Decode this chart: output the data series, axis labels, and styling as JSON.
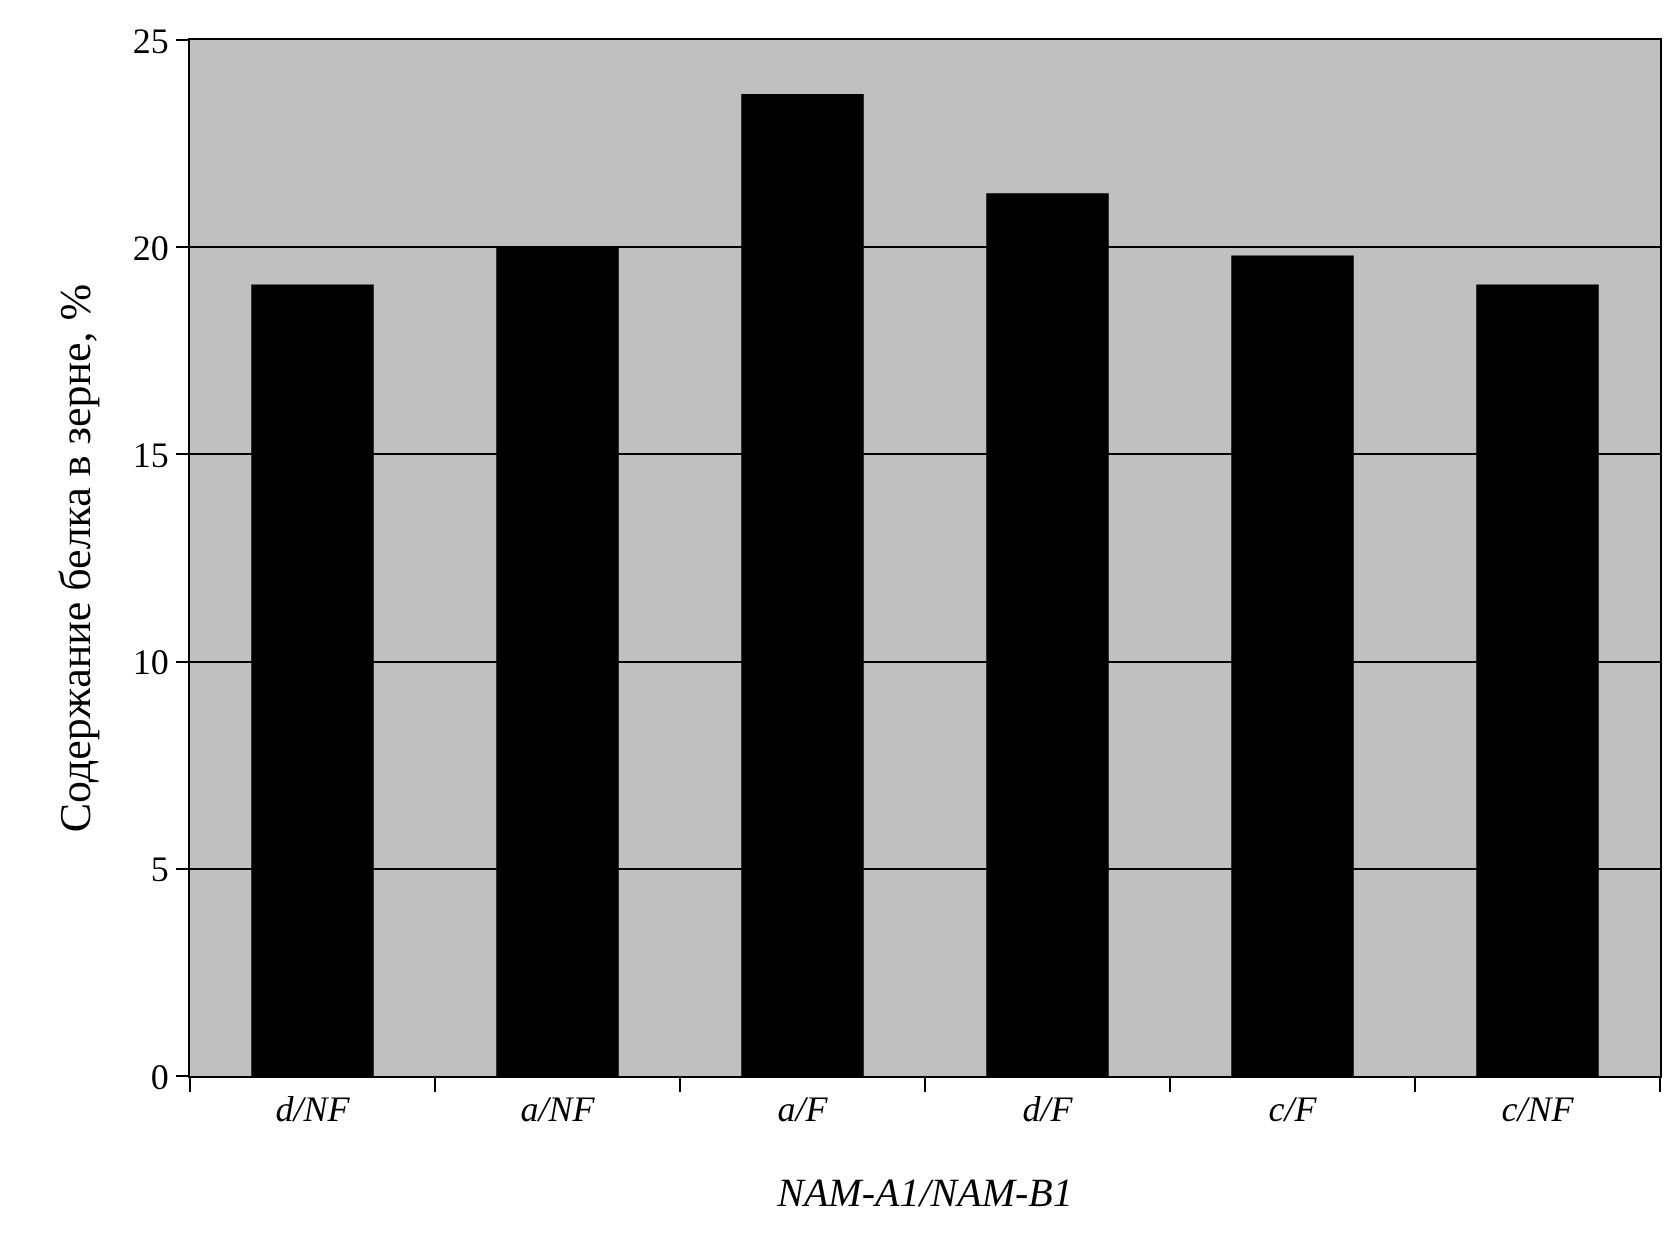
{
  "chart_data": {
    "type": "bar",
    "xlabel": "NAM-A1/NAM-B1",
    "ylabel": "Содержание белка в зерне, %",
    "categories": [
      "d/NF",
      "a/NF",
      "a/F",
      "d/F",
      "c/F",
      "c/NF"
    ],
    "values": [
      19.1,
      20.0,
      23.7,
      21.3,
      19.8,
      19.1
    ],
    "color": "#000000",
    "ylim": [
      0,
      25
    ],
    "yticks": [
      0,
      5,
      10,
      15,
      20,
      25
    ],
    "grid": "y"
  }
}
